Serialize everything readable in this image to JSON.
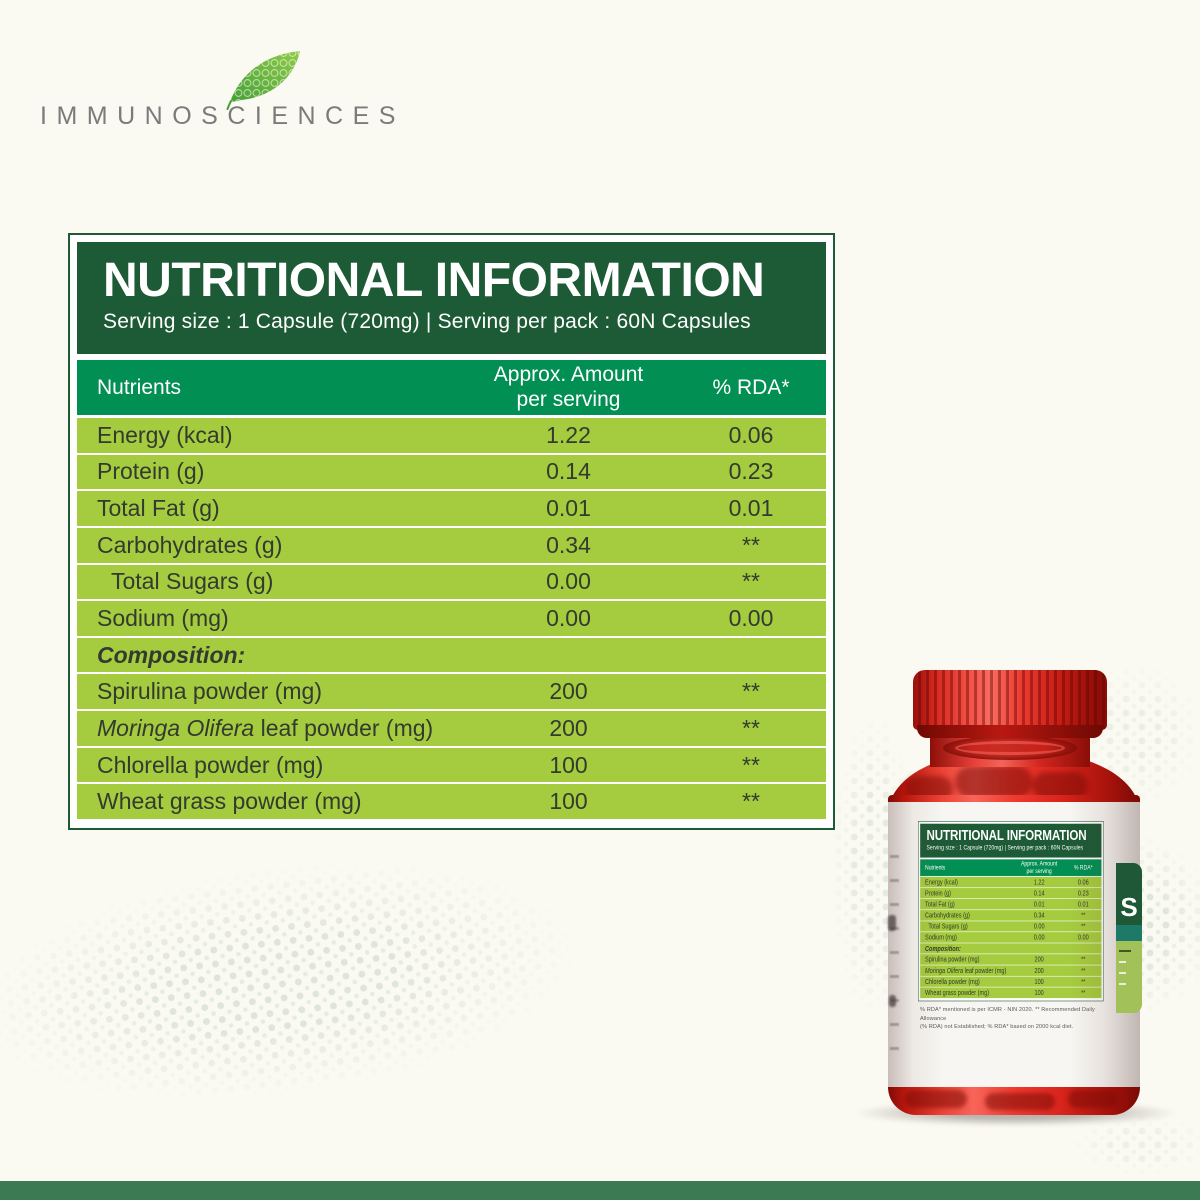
{
  "brand": {
    "logo_text": "IMMUNOSCIENCES"
  },
  "panel": {
    "title": "NUTRITIONAL INFORMATION",
    "serving_line": "Serving size : 1 Capsule (720mg) | Serving per pack : 60N Capsules",
    "columns": {
      "nutrients": "Nutrients",
      "amount_line1": "Approx. Amount",
      "amount_line2": "per serving",
      "rda": "% RDA*"
    }
  },
  "table": {
    "rows": [
      {
        "label": "Energy (kcal)",
        "amount": "1.22",
        "rda": "0.06"
      },
      {
        "label": "Protein (g)",
        "amount": "0.14",
        "rda": "0.23"
      },
      {
        "label": "Total Fat (g)",
        "amount": "0.01",
        "rda": "0.01"
      },
      {
        "label": "Carbohydrates (g)",
        "amount": "0.34",
        "rda": "**"
      },
      {
        "label": "Total Sugars (g)",
        "amount": "0.00",
        "rda": "**",
        "indent": true
      },
      {
        "label": "Sodium (mg)",
        "amount": "0.00",
        "rda": "0.00"
      },
      {
        "label": "Composition:",
        "amount": "",
        "rda": "",
        "section": true
      },
      {
        "label": "Spirulina powder (mg)",
        "amount": "200",
        "rda": "**"
      },
      {
        "label": "Moringa Olifera leaf powder (mg)",
        "italic": "Moringa Olifera",
        "rest": " leaf powder (mg)",
        "amount": "200",
        "rda": "**"
      },
      {
        "label": "Chlorella powder (mg)",
        "amount": "100",
        "rda": "**"
      },
      {
        "label": "Wheat grass powder (mg)",
        "amount": "100",
        "rda": "**"
      }
    ]
  },
  "bottle": {
    "side_letter": "S",
    "disclaimer_line1": "% RDA* mentioned is per ICMR - NIN 2020. ** Recommended Daily Allowance",
    "disclaimer_line2": "(% RDA) not Established; % RDA* based on 2000 kcal diet."
  },
  "colors": {
    "header_dark_green": "#1d5a36",
    "column_header_green": "#028f53",
    "row_light_green": "#a5cb3e",
    "footer_green": "#3b7a53",
    "bottle_red": "#e2251d",
    "logo_gray": "#7b7b7b"
  }
}
